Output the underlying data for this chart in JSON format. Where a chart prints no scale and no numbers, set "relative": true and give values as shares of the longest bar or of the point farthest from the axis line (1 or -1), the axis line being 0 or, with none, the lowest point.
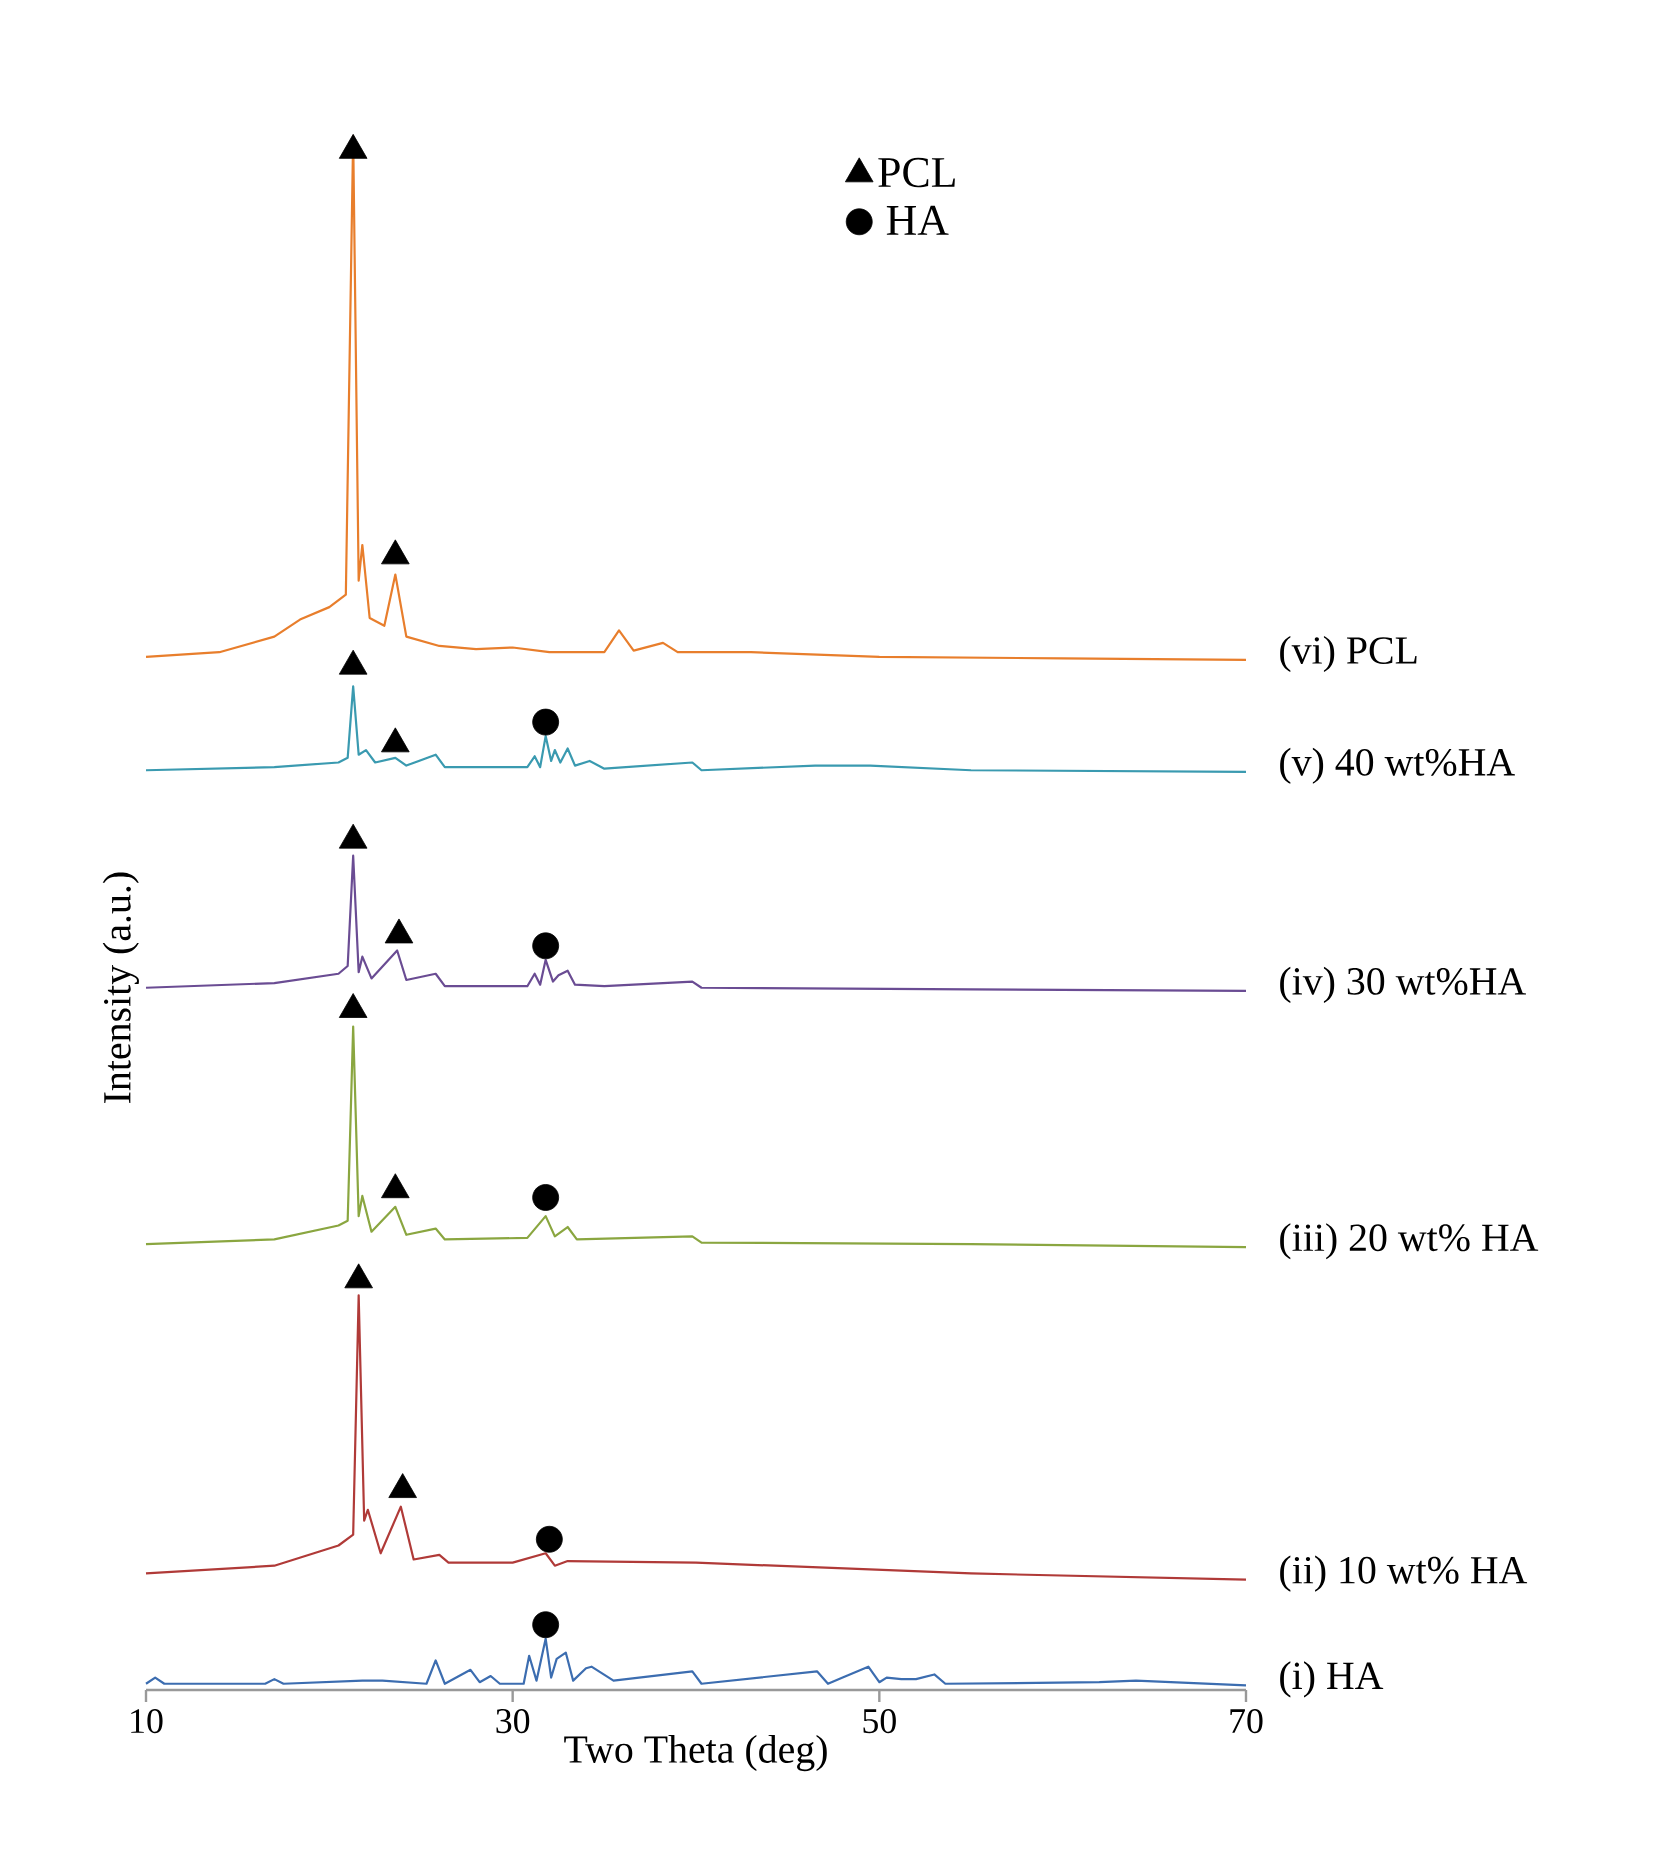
{
  "chart_data": {
    "type": "line",
    "relative": true,
    "xlabel": "Two Theta (deg)",
    "ylabel": "Intensity (a.u.)",
    "xlim": [
      10,
      70
    ],
    "xticks": [
      10,
      30,
      50,
      70
    ],
    "legend": "top right",
    "grid": false,
    "series": [
      {
        "name": "(vi)  PCL",
        "color": "#e87e2c",
        "x": [
          10,
          14,
          17,
          18.4,
          20,
          20.9,
          21.3,
          21.6,
          21.8,
          22.2,
          23.0,
          23.6,
          24.2,
          26,
          28,
          30,
          32,
          35,
          35.8,
          36.6,
          38.2,
          39,
          43,
          50,
          60,
          70
        ],
        "values": [
          0.665,
          0.668,
          0.678,
          0.689,
          0.697,
          0.705,
          1.0,
          0.714,
          0.737,
          0.69,
          0.685,
          0.718,
          0.678,
          0.672,
          0.67,
          0.671,
          0.668,
          0.668,
          0.682,
          0.669,
          0.674,
          0.668,
          0.668,
          0.665,
          0.664,
          0.663
        ]
      },
      {
        "name": "(v) 40 wt%HA",
        "color": "#3a9ab0",
        "x": [
          10,
          17,
          20.5,
          21.0,
          21.3,
          21.6,
          22.0,
          22.5,
          23.6,
          24.2,
          25.8,
          26.3,
          30.8,
          31.2,
          31.5,
          31.8,
          32.1,
          32.3,
          32.6,
          33.0,
          33.4,
          34.2,
          35,
          39.8,
          40.3,
          46.5,
          49.5,
          55,
          70
        ],
        "values": [
          0.592,
          0.594,
          0.597,
          0.6,
          0.646,
          0.602,
          0.605,
          0.597,
          0.6,
          0.595,
          0.602,
          0.594,
          0.594,
          0.601,
          0.594,
          0.614,
          0.598,
          0.605,
          0.597,
          0.606,
          0.595,
          0.598,
          0.593,
          0.597,
          0.592,
          0.595,
          0.595,
          0.592,
          0.591
        ]
      },
      {
        "name": "(iv) 30 wt%HA",
        "color": "#6a4c93",
        "x": [
          10,
          17,
          20.5,
          21.0,
          21.3,
          21.6,
          21.8,
          22.3,
          23.7,
          24.2,
          25.8,
          26.3,
          30.8,
          31.2,
          31.5,
          31.8,
          32.2,
          32.5,
          33.0,
          33.4,
          35,
          39.8,
          40.3,
          55,
          70
        ],
        "values": [
          0.452,
          0.455,
          0.461,
          0.466,
          0.537,
          0.462,
          0.472,
          0.458,
          0.476,
          0.457,
          0.461,
          0.453,
          0.453,
          0.461,
          0.454,
          0.47,
          0.456,
          0.46,
          0.463,
          0.454,
          0.453,
          0.456,
          0.452,
          0.451,
          0.45
        ]
      },
      {
        "name": "(iii) 20 wt% HA",
        "color": "#8aa640",
        "x": [
          10,
          17,
          20.5,
          21.0,
          21.3,
          21.6,
          21.8,
          22.3,
          23.6,
          24.2,
          25.8,
          26.3,
          30.8,
          31.8,
          32.3,
          33.0,
          33.5,
          39.8,
          40.3,
          55,
          70
        ],
        "values": [
          0.287,
          0.29,
          0.299,
          0.302,
          0.427,
          0.305,
          0.318,
          0.295,
          0.311,
          0.293,
          0.297,
          0.29,
          0.291,
          0.305,
          0.292,
          0.298,
          0.29,
          0.292,
          0.288,
          0.287,
          0.285
        ]
      },
      {
        "name": "(ii) 10 wt% HA",
        "color": "#b03a38",
        "x": [
          10,
          17,
          20.5,
          21.3,
          21.6,
          21.9,
          22.1,
          22.8,
          23.9,
          24.6,
          26,
          26.5,
          30,
          31.8,
          32.3,
          33,
          40,
          55,
          70
        ],
        "values": [
          0.075,
          0.08,
          0.093,
          0.1,
          0.254,
          0.109,
          0.116,
          0.088,
          0.118,
          0.084,
          0.087,
          0.082,
          0.082,
          0.088,
          0.08,
          0.083,
          0.082,
          0.075,
          0.071
        ]
      },
      {
        "name": "(i) HA",
        "color": "#3c6db0",
        "x": [
          10,
          10.5,
          11,
          16.5,
          17.0,
          17.5,
          21.8,
          22.9,
          25.3,
          25.8,
          26.3,
          27.7,
          28.2,
          28.8,
          29.3,
          30.6,
          30.9,
          31.3,
          31.8,
          32.1,
          32.4,
          32.9,
          33.3,
          34.0,
          34.3,
          35.5,
          39.8,
          40.3,
          46.6,
          47.2,
          48.0,
          49.4,
          50.0,
          50.4,
          51.2,
          52.0,
          53.0,
          53.6,
          62,
          64,
          70
        ],
        "values": [
          0.004,
          0.008,
          0.004,
          0.004,
          0.007,
          0.004,
          0.006,
          0.006,
          0.004,
          0.019,
          0.004,
          0.013,
          0.005,
          0.009,
          0.004,
          0.004,
          0.022,
          0.006,
          0.033,
          0.008,
          0.02,
          0.024,
          0.006,
          0.014,
          0.015,
          0.006,
          0.012,
          0.004,
          0.012,
          0.004,
          0.008,
          0.015,
          0.005,
          0.008,
          0.007,
          0.007,
          0.01,
          0.004,
          0.005,
          0.006,
          0.003
        ]
      },
      {
        "name": "PCL",
        "type": "scatter",
        "marker": "triangle",
        "color": "#000000",
        "x": [
          21.3,
          23.6,
          21.3,
          23.6,
          21.3,
          23.8,
          21.3,
          23.6,
          21.6,
          24.0
        ],
        "values": [
          0.991,
          0.73,
          0.659,
          0.609,
          0.547,
          0.486,
          0.438,
          0.322,
          0.264,
          0.129
        ]
      },
      {
        "name": "HA",
        "type": "scatter",
        "marker": "circle",
        "color": "#000000",
        "x": [
          31.8,
          31.8,
          31.8,
          32.0,
          31.8
        ],
        "values": [
          0.623,
          0.479,
          0.317,
          0.097,
          0.042
        ]
      }
    ]
  }
}
